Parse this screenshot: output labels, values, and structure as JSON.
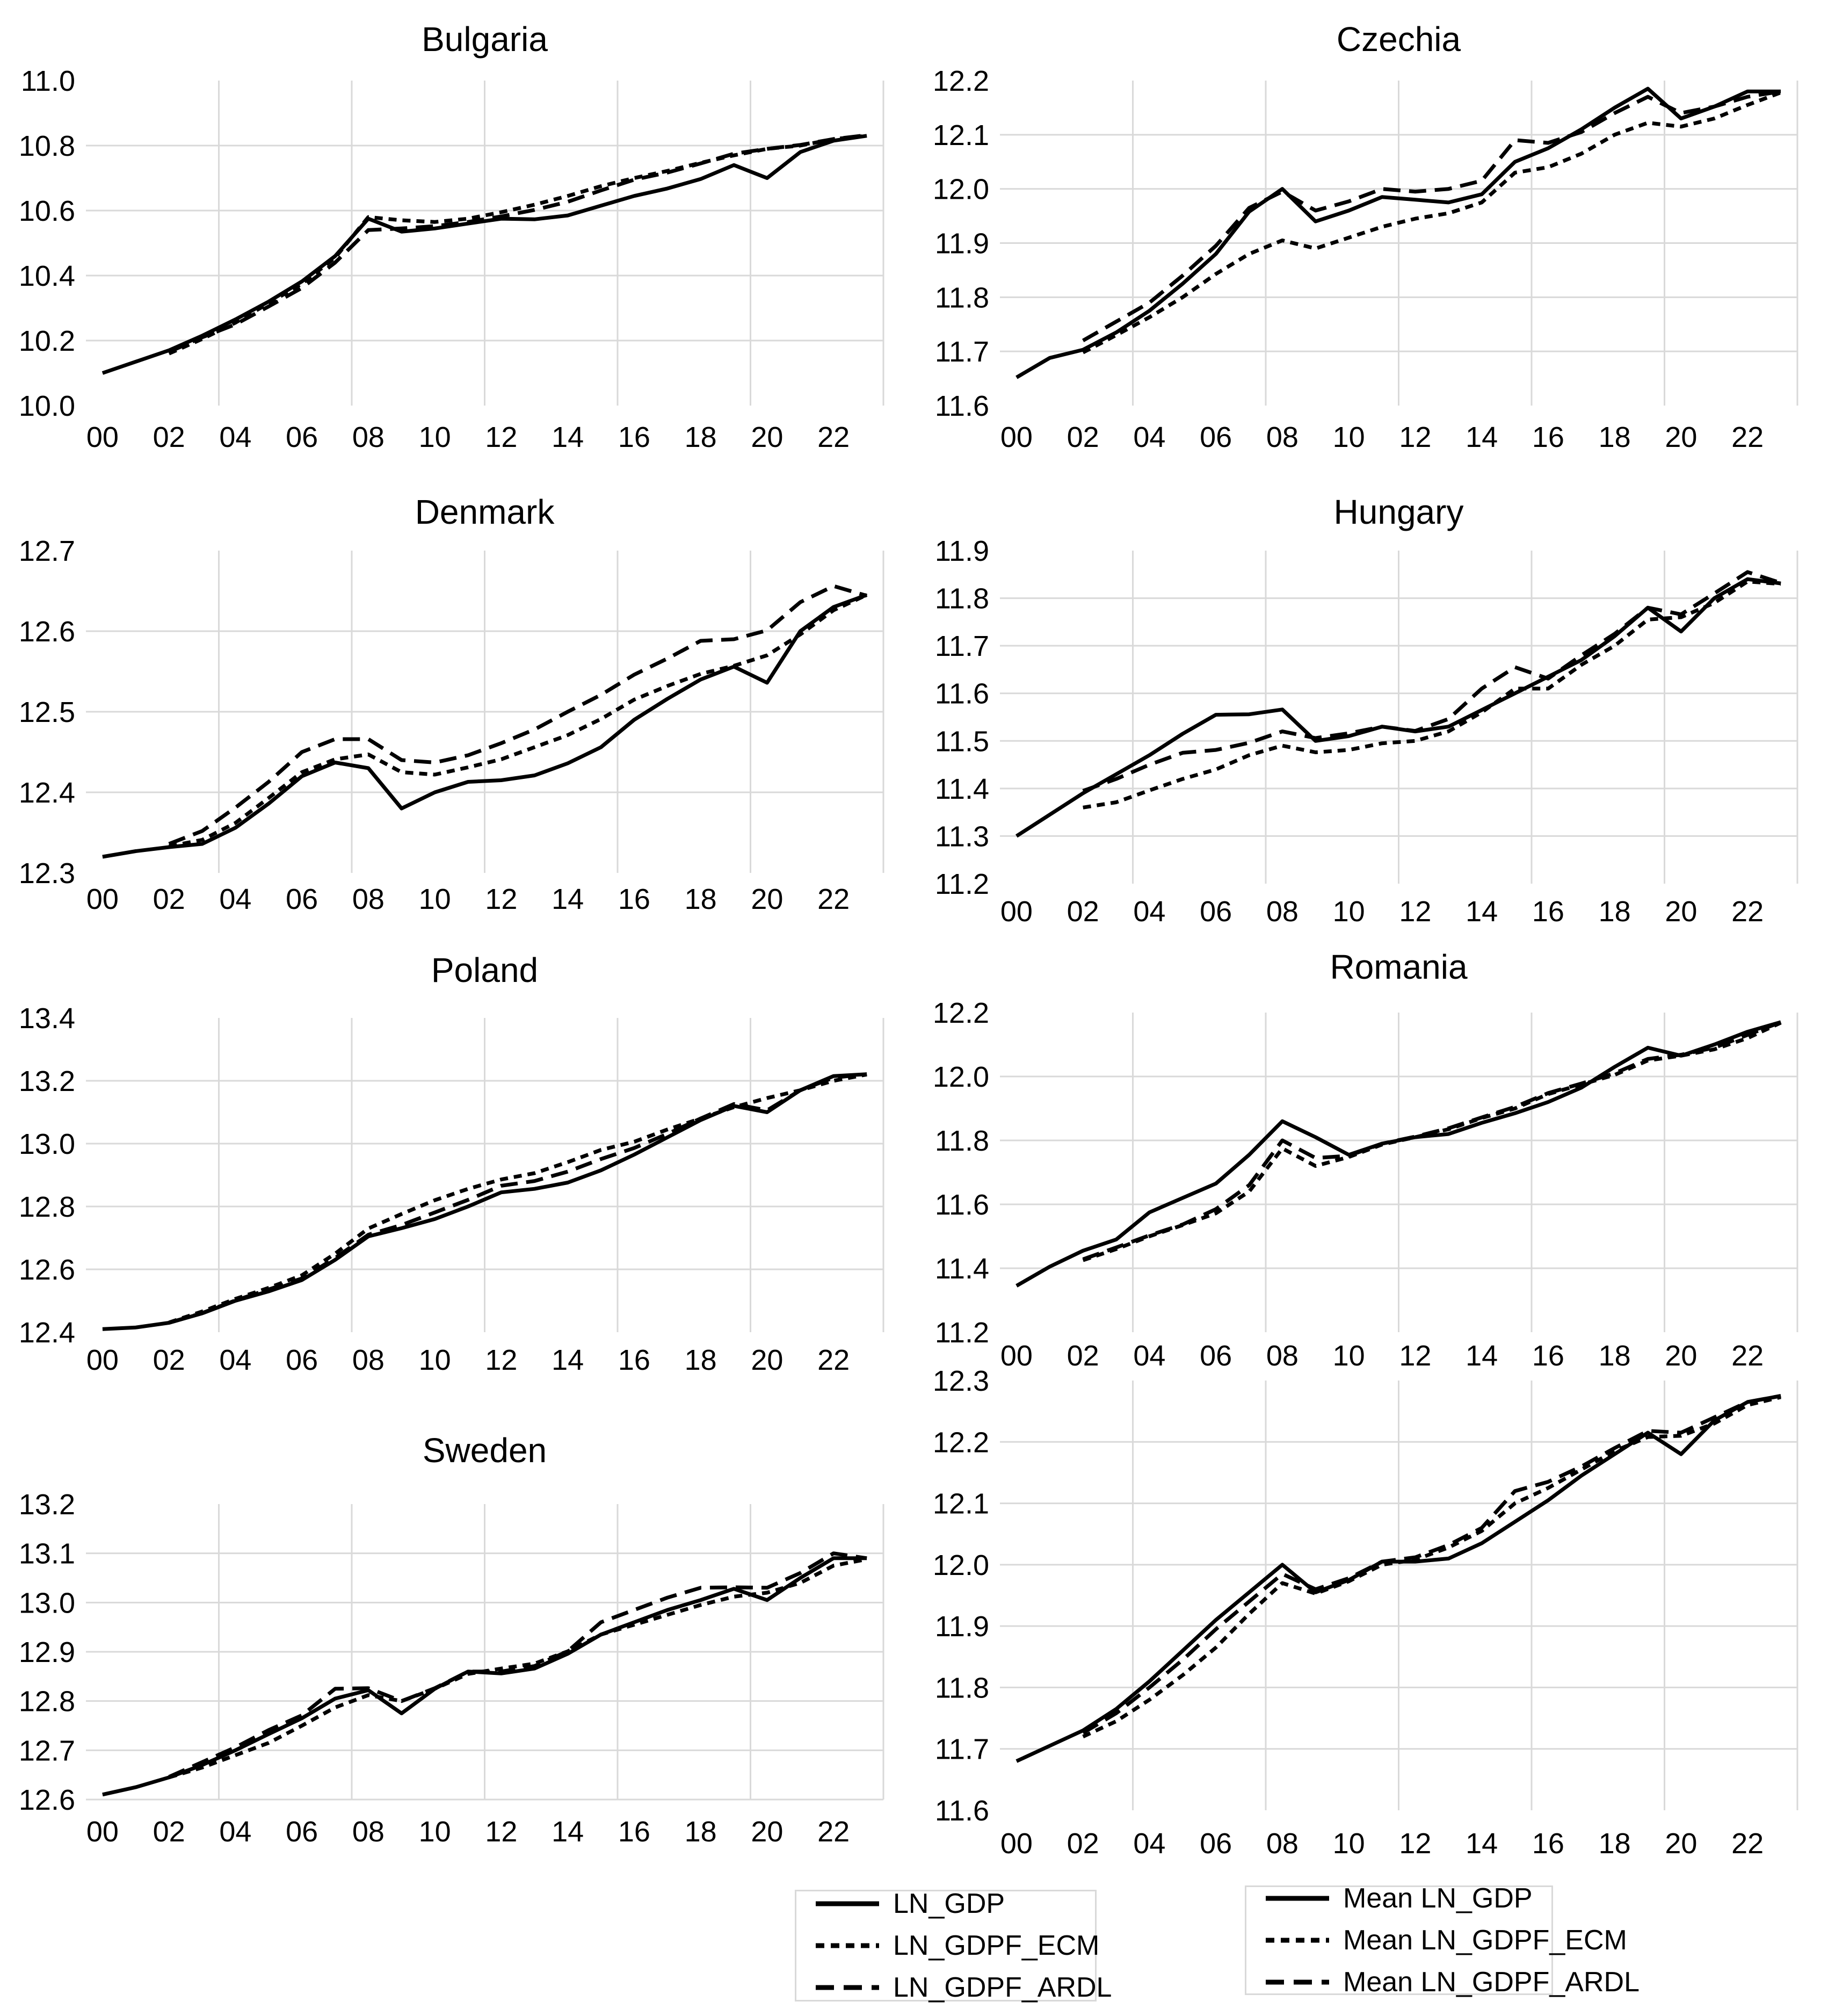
{
  "colors": {
    "line": "#000000",
    "grid": "#d9d9d9",
    "text": "#000000",
    "background": "#ffffff"
  },
  "x_tick_labels": [
    "00",
    "02",
    "04",
    "06",
    "08",
    "10",
    "12",
    "14",
    "16",
    "18",
    "20",
    "22"
  ],
  "legend_left": {
    "items": [
      {
        "label": "LN_GDP",
        "style": "solid"
      },
      {
        "label": "LN_GDPF_ECM",
        "style": "short-dash"
      },
      {
        "label": "LN_GDPF_ARDL",
        "style": "long-dash"
      }
    ]
  },
  "legend_right": {
    "items": [
      {
        "label": "Mean LN_GDP",
        "style": "solid"
      },
      {
        "label": "Mean LN_GDPF_ECM",
        "style": "short-dash"
      },
      {
        "label": "Mean LN_GDPF_ARDL",
        "style": "long-dash"
      }
    ]
  },
  "chart_data": [
    {
      "type": "line",
      "title": "Bulgaria",
      "ylim": [
        10.0,
        11.0
      ],
      "ytick_step": 0.2,
      "y_decimals": 1,
      "x_start": 2000,
      "x_end": 2023,
      "grid": true,
      "legend_position": "none",
      "series": [
        {
          "name": "LN_GDP",
          "style": "solid",
          "start_year": 2000,
          "values": [
            10.1,
            10.135,
            10.17,
            10.215,
            10.265,
            10.32,
            10.382,
            10.46,
            10.575,
            10.535,
            10.545,
            10.56,
            10.575,
            10.573,
            10.585,
            10.615,
            10.645,
            10.668,
            10.697,
            10.74,
            10.7,
            10.78,
            10.815,
            10.83
          ]
        },
        {
          "name": "LN_GDPF_ECM",
          "style": "short-dash",
          "start_year": 2002,
          "values": [
            10.16,
            10.205,
            10.255,
            10.315,
            10.375,
            10.455,
            10.58,
            10.57,
            10.565,
            10.575,
            10.595,
            10.618,
            10.645,
            10.675,
            10.7,
            10.722,
            10.747,
            10.77,
            10.79,
            10.8,
            10.82,
            10.83
          ]
        },
        {
          "name": "LN_GDPF_ARDL",
          "style": "long-dash",
          "start_year": 2002,
          "values": [
            10.165,
            10.21,
            10.25,
            10.305,
            10.362,
            10.44,
            10.54,
            10.545,
            10.552,
            10.565,
            10.582,
            10.602,
            10.627,
            10.662,
            10.695,
            10.717,
            10.745,
            10.775,
            10.79,
            10.802,
            10.82,
            10.832
          ]
        }
      ]
    },
    {
      "type": "line",
      "title": "Czechia",
      "ylim": [
        11.6,
        12.2
      ],
      "ytick_step": 0.1,
      "y_decimals": 1,
      "x_start": 2000,
      "x_end": 2023,
      "grid": true,
      "legend_position": "none",
      "series": [
        {
          "name": "LN_GDP",
          "style": "solid",
          "start_year": 2000,
          "values": [
            11.652,
            11.688,
            11.703,
            11.735,
            11.775,
            11.825,
            11.88,
            11.958,
            12.0,
            11.94,
            11.96,
            11.985,
            11.98,
            11.975,
            11.99,
            12.05,
            12.075,
            12.11,
            12.15,
            12.185,
            12.13,
            12.152,
            12.18,
            12.18
          ]
        },
        {
          "name": "LN_GDPF_ECM",
          "style": "short-dash",
          "start_year": 2002,
          "values": [
            11.698,
            11.73,
            11.763,
            11.8,
            11.843,
            11.88,
            11.905,
            11.89,
            11.91,
            11.93,
            11.945,
            11.955,
            11.975,
            12.03,
            12.04,
            12.065,
            12.1,
            12.122,
            12.115,
            12.13,
            12.155,
            12.178
          ]
        },
        {
          "name": "LN_GDPF_ARDL",
          "style": "long-dash",
          "start_year": 2002,
          "values": [
            11.72,
            11.755,
            11.79,
            11.84,
            11.895,
            11.965,
            11.995,
            11.96,
            11.977,
            12.0,
            11.995,
            12.0,
            12.015,
            12.09,
            12.085,
            12.105,
            12.14,
            12.17,
            12.14,
            12.152,
            12.17,
            12.18
          ]
        }
      ]
    },
    {
      "type": "line",
      "title": "Denmark",
      "ylim": [
        12.3,
        12.7
      ],
      "ytick_step": 0.1,
      "y_decimals": 1,
      "x_start": 2000,
      "x_end": 2023,
      "grid": true,
      "legend_position": "none",
      "series": [
        {
          "name": "LN_GDP",
          "style": "solid",
          "start_year": 2000,
          "values": [
            12.32,
            12.327,
            12.332,
            12.336,
            12.356,
            12.386,
            12.42,
            12.437,
            12.43,
            12.38,
            12.4,
            12.413,
            12.415,
            12.421,
            12.436,
            12.456,
            12.49,
            12.516,
            12.54,
            12.556,
            12.536,
            12.6,
            12.63,
            12.645
          ]
        },
        {
          "name": "LN_GDPF_ECM",
          "style": "short-dash",
          "start_year": 2002,
          "values": [
            12.333,
            12.341,
            12.362,
            12.393,
            12.425,
            12.441,
            12.447,
            12.425,
            12.422,
            12.431,
            12.441,
            12.456,
            12.471,
            12.491,
            12.515,
            12.532,
            12.547,
            12.557,
            12.57,
            12.596,
            12.626,
            12.645
          ]
        },
        {
          "name": "LN_GDPF_ARDL",
          "style": "long-dash",
          "start_year": 2002,
          "values": [
            12.336,
            12.352,
            12.381,
            12.413,
            12.45,
            12.466,
            12.466,
            12.44,
            12.437,
            12.446,
            12.461,
            12.478,
            12.5,
            12.521,
            12.546,
            12.566,
            12.588,
            12.59,
            12.601,
            12.636,
            12.656,
            12.644
          ]
        }
      ]
    },
    {
      "type": "line",
      "title": "Hungary",
      "ylim": [
        11.2,
        11.9
      ],
      "ytick_step": 0.1,
      "y_decimals": 1,
      "x_start": 2000,
      "x_end": 2023,
      "grid": true,
      "legend_position": "none",
      "series": [
        {
          "name": "LN_GDP",
          "style": "solid",
          "start_year": 2000,
          "values": [
            11.3,
            11.345,
            11.39,
            11.43,
            11.47,
            11.515,
            11.555,
            11.556,
            11.566,
            11.5,
            11.51,
            11.53,
            11.52,
            11.53,
            11.565,
            11.6,
            11.635,
            11.67,
            11.72,
            11.78,
            11.73,
            11.8,
            11.84,
            11.831
          ]
        },
        {
          "name": "LN_GDPF_ECM",
          "style": "short-dash",
          "start_year": 2002,
          "values": [
            11.36,
            11.371,
            11.396,
            11.42,
            11.44,
            11.47,
            11.49,
            11.476,
            11.481,
            11.495,
            11.5,
            11.52,
            11.56,
            11.61,
            11.61,
            11.66,
            11.7,
            11.755,
            11.76,
            11.79,
            11.835,
            11.83
          ]
        },
        {
          "name": "LN_GDPF_ARDL",
          "style": "long-dash",
          "start_year": 2002,
          "values": [
            11.395,
            11.42,
            11.45,
            11.475,
            11.481,
            11.496,
            11.52,
            11.506,
            11.516,
            11.53,
            11.521,
            11.546,
            11.61,
            11.655,
            11.631,
            11.68,
            11.725,
            11.78,
            11.766,
            11.81,
            11.855,
            11.832
          ]
        }
      ]
    },
    {
      "type": "line",
      "title": "Poland",
      "ylim": [
        12.4,
        13.4
      ],
      "ytick_step": 0.2,
      "y_decimals": 1,
      "x_start": 2000,
      "x_end": 2023,
      "grid": true,
      "legend_position": "none",
      "series": [
        {
          "name": "LN_GDP",
          "style": "solid",
          "start_year": 2000,
          "values": [
            12.41,
            12.415,
            12.43,
            12.46,
            12.5,
            12.53,
            12.566,
            12.63,
            12.705,
            12.731,
            12.76,
            12.8,
            12.845,
            12.856,
            12.876,
            12.915,
            12.965,
            13.02,
            13.075,
            13.12,
            13.1,
            13.17,
            13.215,
            13.221
          ]
        },
        {
          "name": "LN_GDPF_ECM",
          "style": "short-dash",
          "start_year": 2002,
          "values": [
            12.431,
            12.466,
            12.506,
            12.541,
            12.581,
            12.65,
            12.73,
            12.776,
            12.82,
            12.856,
            12.886,
            12.906,
            12.941,
            12.98,
            13.006,
            13.045,
            13.08,
            13.116,
            13.145,
            13.17,
            13.2,
            13.22
          ]
        },
        {
          "name": "LN_GDPF_ARDL",
          "style": "long-dash",
          "start_year": 2002,
          "values": [
            12.43,
            12.461,
            12.501,
            12.536,
            12.571,
            12.636,
            12.71,
            12.741,
            12.781,
            12.821,
            12.866,
            12.881,
            12.911,
            12.951,
            12.986,
            13.031,
            13.08,
            13.126,
            13.106,
            13.17,
            13.21,
            13.221
          ]
        }
      ]
    },
    {
      "type": "line",
      "title": "Romania",
      "ylim": [
        11.2,
        12.2
      ],
      "ytick_step": 0.2,
      "y_decimals": 1,
      "x_start": 2000,
      "x_end": 2023,
      "grid": true,
      "legend_position": "none",
      "series": [
        {
          "name": "LN_GDP",
          "style": "solid",
          "start_year": 2000,
          "values": [
            11.345,
            11.405,
            11.455,
            11.49,
            11.575,
            11.62,
            11.665,
            11.755,
            11.86,
            11.81,
            11.755,
            11.79,
            11.81,
            11.82,
            11.855,
            11.885,
            11.92,
            11.965,
            12.03,
            12.09,
            12.065,
            12.1,
            12.14,
            12.17
          ]
        },
        {
          "name": "LN_GDPF_ECM",
          "style": "short-dash",
          "start_year": 2002,
          "values": [
            11.425,
            11.46,
            11.5,
            11.535,
            11.572,
            11.64,
            11.775,
            11.72,
            11.748,
            11.787,
            11.81,
            11.835,
            11.87,
            11.9,
            11.945,
            11.975,
            12.005,
            12.05,
            12.065,
            12.085,
            12.12,
            12.168
          ]
        },
        {
          "name": "LN_GDPF_ARDL",
          "style": "long-dash",
          "start_year": 2002,
          "values": [
            11.428,
            11.465,
            11.503,
            11.537,
            11.585,
            11.66,
            11.8,
            11.745,
            11.752,
            11.79,
            11.812,
            11.838,
            11.872,
            11.905,
            11.948,
            11.978,
            12.01,
            12.055,
            12.068,
            12.09,
            12.13,
            12.17
          ]
        }
      ]
    },
    {
      "type": "line",
      "title": "Sweden",
      "ylim": [
        12.6,
        13.2
      ],
      "ytick_step": 0.1,
      "y_decimals": 1,
      "x_start": 2000,
      "x_end": 2023,
      "grid": true,
      "legend_position": "none",
      "series": [
        {
          "name": "LN_GDP",
          "style": "solid",
          "start_year": 2000,
          "values": [
            12.61,
            12.625,
            12.645,
            12.67,
            12.7,
            12.733,
            12.765,
            12.805,
            12.822,
            12.775,
            12.825,
            12.86,
            12.856,
            12.866,
            12.896,
            12.935,
            12.96,
            12.985,
            13.005,
            13.028,
            13.005,
            13.05,
            13.09,
            13.09
          ]
        },
        {
          "name": "LN_GDPF_ECM",
          "style": "short-dash",
          "start_year": 2002,
          "values": [
            12.645,
            12.665,
            12.69,
            12.715,
            12.75,
            12.787,
            12.812,
            12.8,
            12.825,
            12.855,
            12.866,
            12.876,
            12.901,
            12.935,
            12.955,
            12.975,
            12.995,
            13.012,
            13.02,
            13.04,
            13.075,
            13.088
          ]
        },
        {
          "name": "LN_GDPF_ARDL",
          "style": "long-dash",
          "start_year": 2002,
          "values": [
            12.646,
            12.676,
            12.706,
            12.741,
            12.771,
            12.825,
            12.826,
            12.8,
            12.826,
            12.86,
            12.86,
            12.871,
            12.901,
            12.96,
            12.985,
            13.01,
            13.03,
            13.031,
            13.03,
            13.06,
            13.1,
            13.09
          ]
        }
      ]
    },
    {
      "type": "line",
      "title": "",
      "ylim": [
        11.6,
        12.3
      ],
      "ytick_step": 0.1,
      "y_decimals": 1,
      "x_start": 2000,
      "x_end": 2023,
      "grid": true,
      "legend_position": "none",
      "series": [
        {
          "name": "Mean LN_GDP",
          "style": "solid",
          "start_year": 2000,
          "values": [
            11.68,
            11.705,
            11.73,
            11.765,
            11.81,
            11.86,
            11.91,
            11.955,
            12.0,
            11.955,
            11.975,
            12.005,
            12.005,
            12.01,
            12.035,
            12.07,
            12.105,
            12.145,
            12.18,
            12.215,
            12.18,
            12.235,
            12.265,
            12.275
          ]
        },
        {
          "name": "Mean LN_GDPF_ECM",
          "style": "short-dash",
          "start_year": 2002,
          "values": [
            11.72,
            11.745,
            11.78,
            11.82,
            11.865,
            11.92,
            11.97,
            11.953,
            11.973,
            12.0,
            12.008,
            12.028,
            12.055,
            12.1,
            12.125,
            12.155,
            12.185,
            12.208,
            12.21,
            12.23,
            12.26,
            12.273
          ]
        },
        {
          "name": "Mean LN_GDPF_ARDL",
          "style": "long-dash",
          "start_year": 2002,
          "values": [
            11.726,
            11.758,
            11.8,
            11.845,
            11.895,
            11.94,
            11.985,
            11.96,
            11.978,
            12.005,
            12.012,
            12.032,
            12.06,
            12.12,
            12.135,
            12.16,
            12.19,
            12.218,
            12.215,
            12.24,
            12.265,
            12.275
          ]
        }
      ]
    }
  ]
}
